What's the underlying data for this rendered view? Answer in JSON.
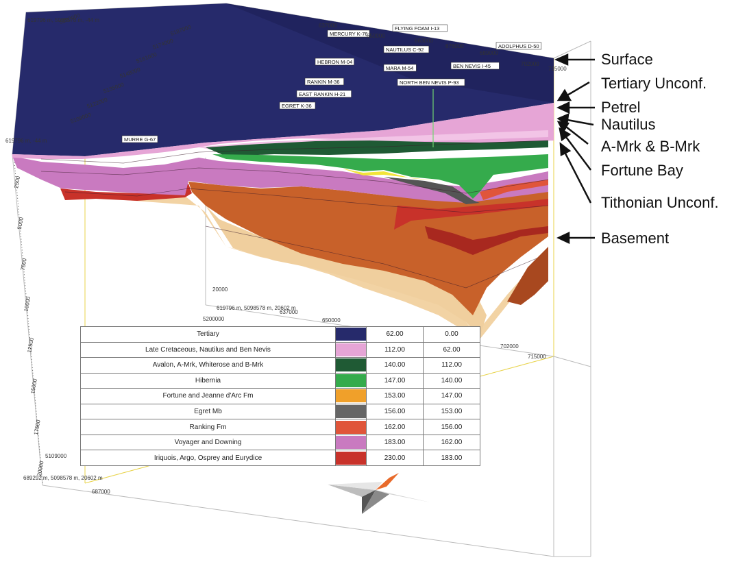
{
  "callouts": [
    {
      "id": "surface",
      "label": "Surface"
    },
    {
      "id": "tertiary",
      "label": "Tertiary Unconf."
    },
    {
      "id": "petrel",
      "label": "Petrel"
    },
    {
      "id": "nautilus",
      "label": "Nautilus"
    },
    {
      "id": "amrk",
      "label": "A-Mrk & B-Mrk"
    },
    {
      "id": "fortune",
      "label": "Fortune Bay"
    },
    {
      "id": "tithonian",
      "label": "Tithonian Unconf."
    },
    {
      "id": "basement",
      "label": "Basement"
    }
  ],
  "legend": [
    {
      "name": "Tertiary",
      "color": "#262a6b",
      "top": "62.00",
      "base": "0.00"
    },
    {
      "name": "Late Cretaceous, Nautilus and Ben Nevis",
      "color": "#e6a5d6",
      "top": "112.00",
      "base": "62.00"
    },
    {
      "name": "Avalon, A-Mrk, Whiterose and B-Mrk",
      "color": "#1f5a34",
      "top": "140.00",
      "base": "112.00"
    },
    {
      "name": "Hibernia",
      "color": "#35ab4c",
      "top": "147.00",
      "base": "140.00"
    },
    {
      "name": "Fortune and Jeanne d'Arc Fm",
      "color": "#f0a02a",
      "top": "153.00",
      "base": "147.00"
    },
    {
      "name": "Egret Mb",
      "color": "#666666",
      "top": "156.00",
      "base": "153.00"
    },
    {
      "name": "Ranking Fm",
      "color": "#e0553a",
      "top": "162.00",
      "base": "156.00"
    },
    {
      "name": "Voyager and Downing",
      "color": "#c97ac0",
      "top": "183.00",
      "base": "162.00"
    },
    {
      "name": "Iriquois, Argo, Osprey and Eurydice",
      "color": "#c8322a",
      "top": "230.00",
      "base": "183.00"
    }
  ],
  "wells": [
    "MERCURY K-76",
    "FLYING FOAM I-13",
    "NAUTILUS C-92",
    "HEBRON M-04",
    "RANKIN M-36",
    "EAST RANKIN H-21",
    "EGRET K-36",
    "MURRE G-67",
    "NORTH BEN NEVIS P-93",
    "ADOLPHUS D-50",
    "BEN NEVIS I-45",
    "MARA M-54"
  ],
  "axes": {
    "top_corner": "619796 m, 5098578 m, -44 m",
    "mid_corner": "619796 m, 5098578 m, 20602 m",
    "bottom_corner": "689292 m, 5098578 m, 20602 m",
    "left_corner": "619796 m, -44 m",
    "easting_top": [
      "637000",
      "650000",
      "663000",
      "676000",
      "689000",
      "702000",
      "715000"
    ],
    "northing_top": [
      "5200000",
      "5187000",
      "5174000",
      "5161000",
      "5148000",
      "5135000",
      "5122000",
      "5109000"
    ],
    "depth": [
      "2500",
      "5000",
      "7500",
      "10000",
      "12500",
      "15000",
      "17500",
      "20000"
    ],
    "base_ticks": [
      "20000",
      "5200000",
      "637000",
      "650000",
      "689000",
      "702000",
      "715000",
      "5109000",
      "687000"
    ]
  }
}
